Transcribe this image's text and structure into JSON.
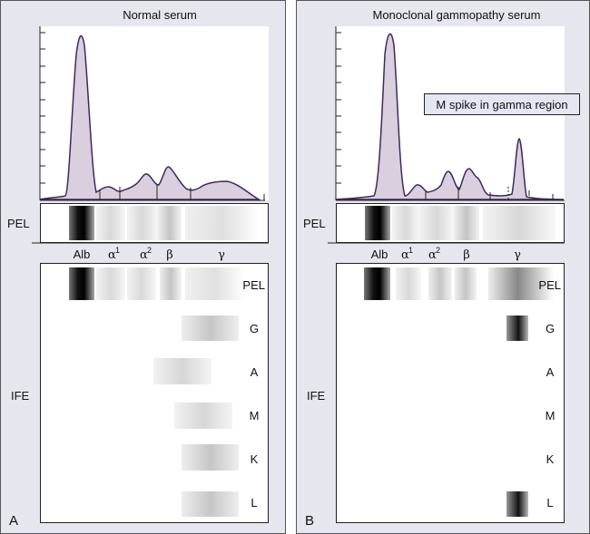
{
  "panels": [
    {
      "letter": "A",
      "title": "Normal serum",
      "pel_label": "PEL",
      "ife_label": "IFE",
      "fractions": [
        "Alb",
        "α",
        "1",
        "α",
        "2",
        "β",
        "γ"
      ],
      "ife_rows": [
        "PEL",
        "G",
        "A",
        "M",
        "K",
        "L"
      ]
    },
    {
      "letter": "B",
      "title": "Monoclonal gammopathy serum",
      "pel_label": "PEL",
      "ife_label": "IFE",
      "fractions": [
        "Alb",
        "α",
        "1",
        "α",
        "2",
        "β",
        "γ"
      ],
      "ife_rows": [
        "PEL",
        "G",
        "A",
        "M",
        "K",
        "L"
      ],
      "annotation": "M spike in gamma region"
    }
  ],
  "colors": {
    "panel_bg": "#e6e6ee",
    "curve_fill": "#d9cfde",
    "curve_stroke": "#3d2a5e",
    "annotation_bg": "#e4e7f2"
  }
}
